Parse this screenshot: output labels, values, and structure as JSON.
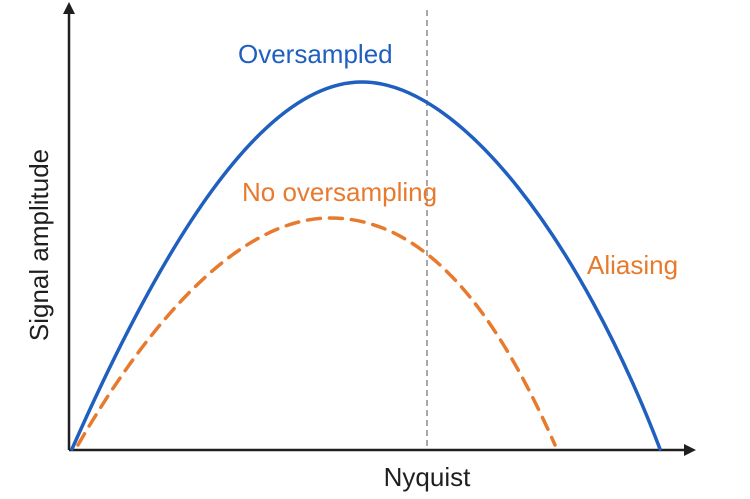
{
  "diagram": {
    "ylabel": "Signal amplitude",
    "xtick": "Nyquist",
    "labels": {
      "oversampled": "Oversampled",
      "no_oversampling": "No oversampling",
      "aliasing": "Aliasing"
    },
    "colors": {
      "axis": "#1f1f1f",
      "oversampled": "#1f5fbf",
      "no_oversampling": "#e87a2e",
      "aliasing": "#e87a2e",
      "nyquist_line": "#a8a8a8",
      "text": "#1f1f1f"
    },
    "curves": [
      {
        "id": "oversampled",
        "style": "solid",
        "shape": "arch"
      },
      {
        "id": "no_oversampling",
        "style": "dashed",
        "shape": "arch"
      }
    ]
  }
}
